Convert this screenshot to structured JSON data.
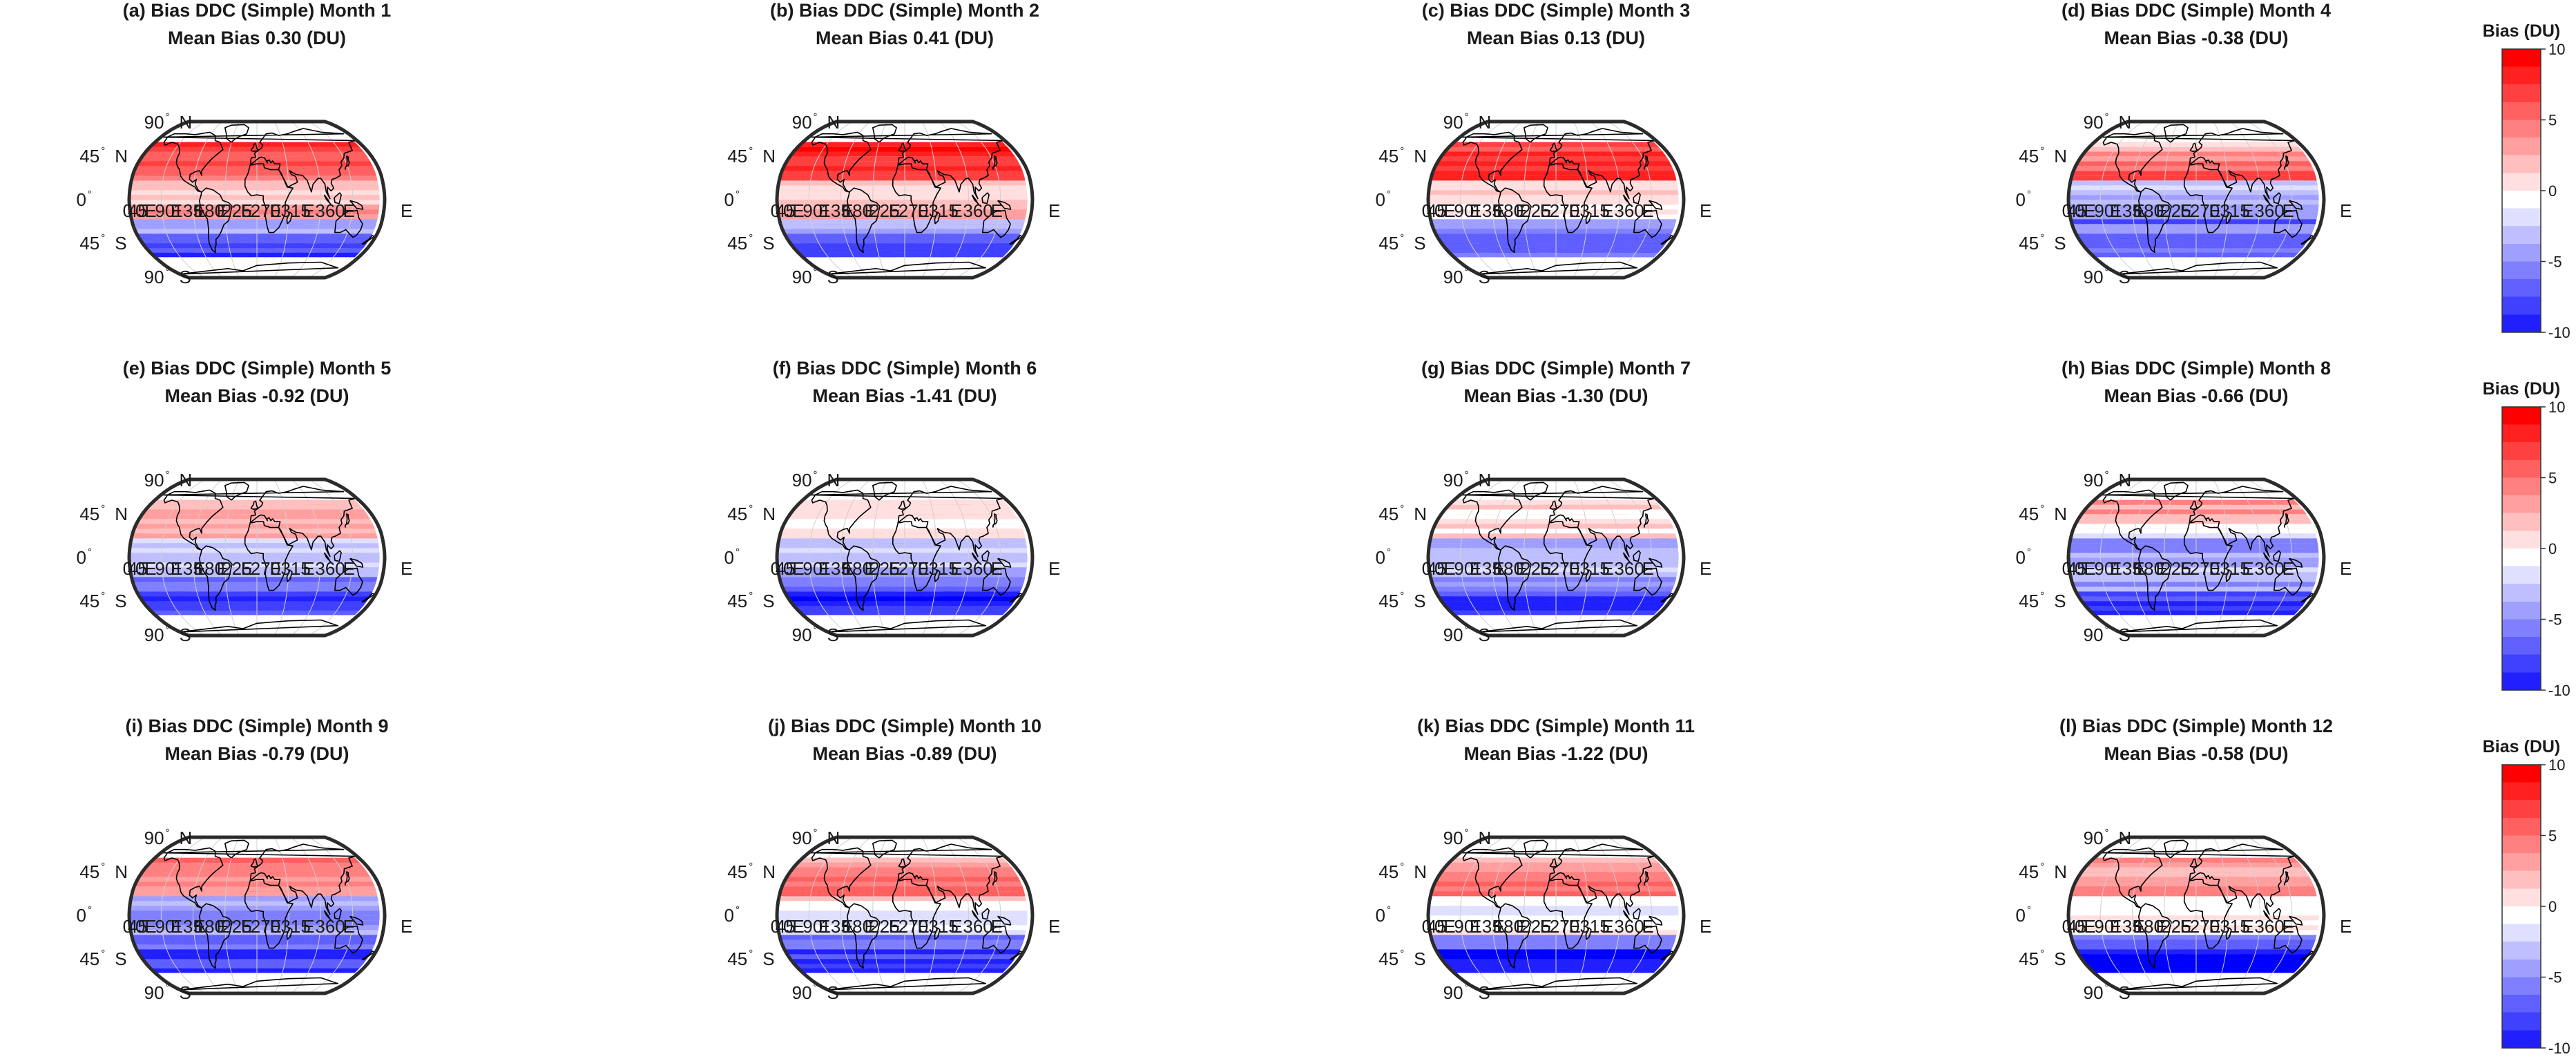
{
  "colors": {
    "positive": "#ff0000",
    "neutral": "#ffffff",
    "negative": "#0000ff",
    "land": "#000000"
  },
  "labels": {
    "lat": [
      {
        "value": "90",
        "hemi": "N"
      },
      {
        "value": "45",
        "hemi": "N"
      },
      {
        "value": "0",
        "hemi": ""
      },
      {
        "value": "45",
        "hemi": "S"
      },
      {
        "value": "90",
        "hemi": "S"
      }
    ],
    "lon": [
      "0",
      "45",
      "E",
      "90",
      "E",
      "135",
      "E",
      "180",
      "E",
      "225",
      "E",
      "270",
      "E",
      "315",
      "E",
      "360",
      "E"
    ]
  },
  "colorbar": {
    "title": "Bias (DU)",
    "ticks": [
      "10",
      "5",
      "0",
      "-5",
      "-10"
    ],
    "range": [
      -10,
      10
    ]
  },
  "chart_data": [
    {
      "type": "heatmap",
      "projection": "Robinson",
      "panel": "(a)",
      "month": 1,
      "title": "(a) Bias DDC (Simple) Month 1",
      "subtitle": "Mean Bias 0.30 (DU)",
      "mean_bias": 0.3,
      "colorbar_range": [
        -10,
        10
      ]
    },
    {
      "type": "heatmap",
      "projection": "Robinson",
      "panel": "(b)",
      "month": 2,
      "title": "(b) Bias DDC (Simple) Month 2",
      "subtitle": "Mean Bias 0.41 (DU)",
      "mean_bias": 0.41,
      "colorbar_range": [
        -10,
        10
      ]
    },
    {
      "type": "heatmap",
      "projection": "Robinson",
      "panel": "(c)",
      "month": 3,
      "title": "(c) Bias DDC (Simple) Month 3",
      "subtitle": "Mean Bias 0.13 (DU)",
      "mean_bias": 0.13,
      "colorbar_range": [
        -10,
        10
      ]
    },
    {
      "type": "heatmap",
      "projection": "Robinson",
      "panel": "(d)",
      "month": 4,
      "title": "(d) Bias DDC (Simple) Month 4",
      "subtitle": "Mean Bias -0.38 (DU)",
      "mean_bias": -0.38,
      "colorbar_range": [
        -10,
        10
      ]
    },
    {
      "type": "heatmap",
      "projection": "Robinson",
      "panel": "(e)",
      "month": 5,
      "title": "(e) Bias DDC (Simple) Month 5",
      "subtitle": "Mean Bias -0.92 (DU)",
      "mean_bias": -0.92,
      "colorbar_range": [
        -10,
        10
      ]
    },
    {
      "type": "heatmap",
      "projection": "Robinson",
      "panel": "(f)",
      "month": 6,
      "title": "(f) Bias DDC (Simple) Month 6",
      "subtitle": "Mean Bias -1.41 (DU)",
      "mean_bias": -1.41,
      "colorbar_range": [
        -10,
        10
      ]
    },
    {
      "type": "heatmap",
      "projection": "Robinson",
      "panel": "(g)",
      "month": 7,
      "title": "(g) Bias DDC (Simple) Month 7",
      "subtitle": "Mean Bias -1.30 (DU)",
      "mean_bias": -1.3,
      "colorbar_range": [
        -10,
        10
      ]
    },
    {
      "type": "heatmap",
      "projection": "Robinson",
      "panel": "(h)",
      "month": 8,
      "title": "(h) Bias DDC (Simple) Month 8",
      "subtitle": "Mean Bias -0.66 (DU)",
      "mean_bias": -0.66,
      "colorbar_range": [
        -10,
        10
      ]
    },
    {
      "type": "heatmap",
      "projection": "Robinson",
      "panel": "(i)",
      "month": 9,
      "title": "(i) Bias DDC (Simple) Month 9",
      "subtitle": "Mean Bias -0.79 (DU)",
      "mean_bias": -0.79,
      "colorbar_range": [
        -10,
        10
      ]
    },
    {
      "type": "heatmap",
      "projection": "Robinson",
      "panel": "(j)",
      "month": 10,
      "title": "(j) Bias DDC (Simple) Month 10",
      "subtitle": "Mean Bias -0.89 (DU)",
      "mean_bias": -0.89,
      "colorbar_range": [
        -10,
        10
      ]
    },
    {
      "type": "heatmap",
      "projection": "Robinson",
      "panel": "(k)",
      "month": 11,
      "title": "(k) Bias DDC (Simple) Month 11",
      "subtitle": "Mean Bias -1.22 (DU)",
      "mean_bias": -1.22,
      "colorbar_range": [
        -10,
        10
      ]
    },
    {
      "type": "heatmap",
      "projection": "Robinson",
      "panel": "(l)",
      "month": 12,
      "title": "(l) Bias DDC (Simple) Month 12",
      "subtitle": "Mean Bias -0.58 (DU)",
      "mean_bias": -0.58,
      "colorbar_range": [
        -10,
        10
      ]
    }
  ]
}
